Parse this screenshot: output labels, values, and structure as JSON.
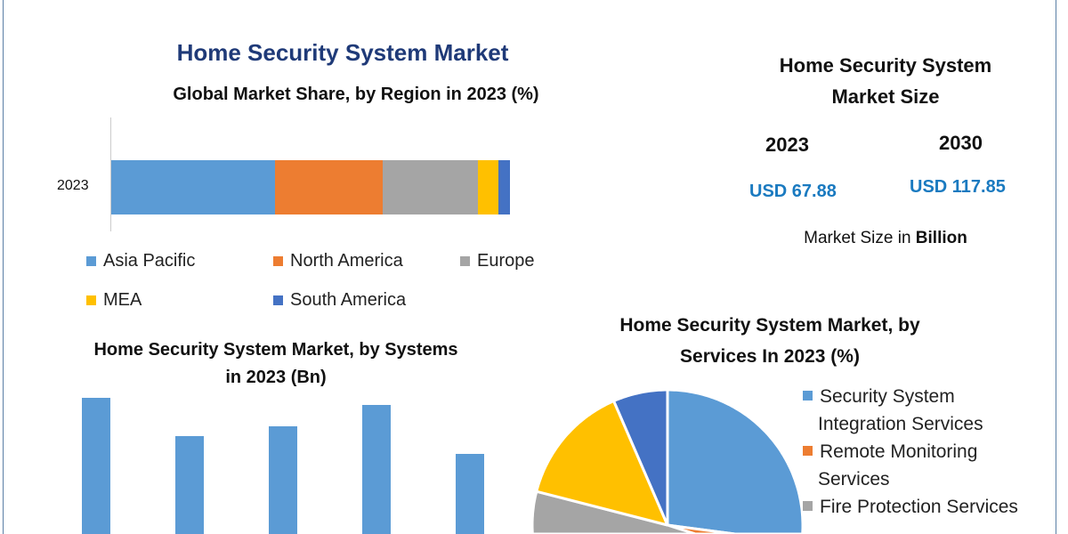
{
  "main_title": "Home Security System Market",
  "market_size": {
    "title_line1": "Home Security System",
    "title_line2": "Market Size",
    "years": [
      "2023",
      "2030"
    ],
    "values": [
      "USD 67.88",
      "USD 117.85"
    ],
    "unit_prefix": "Market Size in ",
    "unit_bold": "Billion",
    "value_color": "#1a7ac0"
  },
  "chart_data": [
    {
      "type": "bar",
      "orientation": "horizontal-stacked",
      "title": "Global Market Share, by Region in 2023 (%)",
      "categories": [
        "2023"
      ],
      "series": [
        {
          "name": "Asia Pacific",
          "values": [
            41
          ],
          "color": "#5b9bd5"
        },
        {
          "name": "North America",
          "values": [
            27
          ],
          "color": "#ed7d31"
        },
        {
          "name": "Europe",
          "values": [
            24
          ],
          "color": "#a5a5a5"
        },
        {
          "name": "MEA",
          "values": [
            5
          ],
          "color": "#ffc000"
        },
        {
          "name": "South America",
          "values": [
            3
          ],
          "color": "#4472c4"
        }
      ],
      "legend_placement": "bottom",
      "grid": false
    },
    {
      "type": "bar",
      "title_line1": "Home Security System Market, by Systems",
      "title_line2": "in 2023 (Bn)",
      "values": [
        15.3,
        11.0,
        12.1,
        14.5,
        9.0
      ],
      "color": "#5b9bd5",
      "grid": false
    },
    {
      "type": "pie",
      "title_line1": "Home Security System Market, by",
      "title_line2": "Services In 2023 (%)",
      "slices": [
        {
          "name": "Security System Integration Services",
          "legend_lines": [
            "Security System",
            "Integration Services"
          ],
          "value": 41.7,
          "color": "#5b9bd5"
        },
        {
          "name": "Remote Monitoring Services",
          "legend_lines": [
            "Remote Monitoring",
            "Services"
          ],
          "value": 5.0,
          "color": "#ed7d31"
        },
        {
          "name": "Fire Protection Services",
          "legend_lines": [
            "Fire Protection Services"
          ],
          "value": 32.3,
          "color": "#a5a5a5"
        },
        {
          "name": "",
          "value": 14.5,
          "color": "#ffc000"
        },
        {
          "name": "",
          "value": 6.5,
          "color": "#4472c4"
        }
      ],
      "legend_placement": "right"
    }
  ]
}
